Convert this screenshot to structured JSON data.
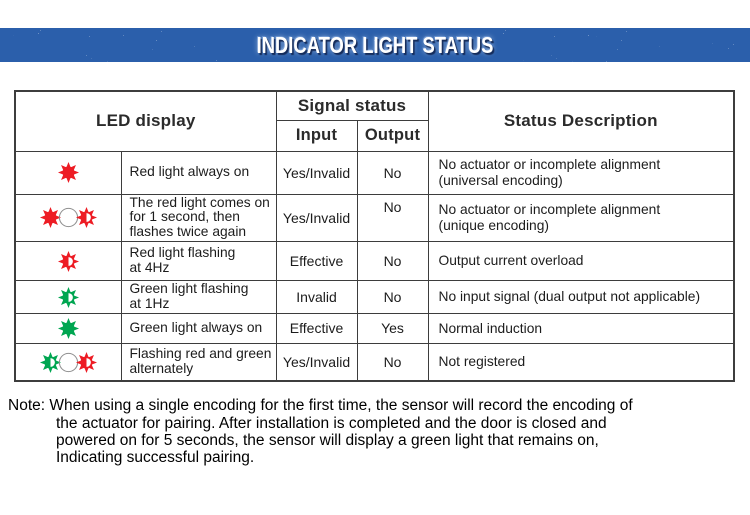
{
  "banner": {
    "title": "INDICATOR LIGHT STATUS"
  },
  "table": {
    "headers": {
      "led_display": "LED display",
      "signal_status": "Signal status",
      "input": "Input",
      "output": "Output",
      "status_description": "Status Description"
    },
    "rows": [
      {
        "icons": [
          "sun-solid-red"
        ],
        "led_label": "Red light always on",
        "input": "Yes/Invalid",
        "output": "No",
        "status": "No actuator or incomplete alignment\n(universal encoding)"
      },
      {
        "icons": [
          "sun-solid-red",
          "circle-outline",
          "sun-flash-red"
        ],
        "led_label": "The red light comes on\nfor 1 second, then\nflashes twice again",
        "input": "Yes/Invalid",
        "output": "No",
        "status": "No actuator or incomplete alignment\n(unique encoding)"
      },
      {
        "icons": [
          "sun-flash-red"
        ],
        "led_label": "Red light flashing\nat 4Hz",
        "input": "Effective",
        "output": "No",
        "status": "Output current overload"
      },
      {
        "icons": [
          "sun-flash-green"
        ],
        "led_label": "Green light flashing\nat 1Hz",
        "input": "Invalid",
        "output": "No",
        "status": "No input signal (dual output not applicable)"
      },
      {
        "icons": [
          "sun-solid-green"
        ],
        "led_label": "Green light always on",
        "input": "Effective",
        "output": "Yes",
        "status": "Normal induction"
      },
      {
        "icons": [
          "sun-flash-green",
          "circle-outline",
          "sun-flash-red"
        ],
        "led_label": "Flashing red and green\nalternately",
        "input": "Yes/Invalid",
        "output": "No",
        "status": "Not registered"
      }
    ]
  },
  "note": {
    "lines": [
      "Note: When using a single encoding for the first time, the sensor will record the encoding of",
      "the actuator for pairing. After installation is completed and the door is closed and",
      "powered on for 5 seconds, the sensor will display a green light that remains on,",
      "Indicating successful pairing."
    ]
  },
  "colors": {
    "banner_blue": "#2b5fab",
    "red": "#ed1c24",
    "green": "#00a651",
    "circle_outline": "#8f8f8f",
    "border": "#3d3d3d"
  }
}
